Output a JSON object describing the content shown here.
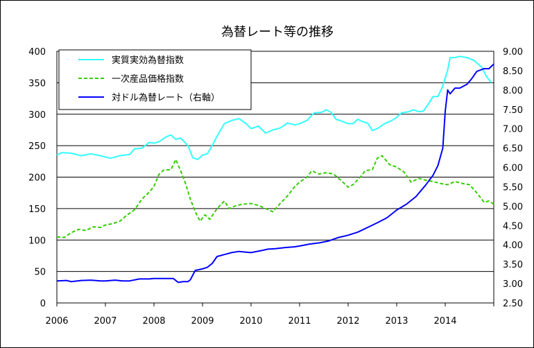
{
  "chart_data": {
    "type": "line",
    "title": "為替レート等の推移",
    "x_ticks": [
      "2006",
      "2007",
      "2008",
      "2009",
      "2010",
      "2011",
      "2012",
      "2013",
      "2014"
    ],
    "y_left": {
      "range": [
        0,
        400
      ],
      "ticks": [
        "0",
        "50",
        "100",
        "150",
        "200",
        "250",
        "300",
        "350",
        "400"
      ]
    },
    "y_right": {
      "range": [
        2.5,
        9.0
      ],
      "ticks": [
        "2.50",
        "3.00",
        "3.50",
        "4.00",
        "4.50",
        "5.00",
        "5.50",
        "6.00",
        "6.50",
        "7.00",
        "7.50",
        "8.00",
        "8.50",
        "9.00"
      ]
    },
    "x_range": [
      2006.0,
      2015.0
    ],
    "grid": "horizontal",
    "legend_position": "top-left",
    "colors": {
      "reer": "#33ffff",
      "cpi": "#33cc00",
      "usd": "#0000ff"
    },
    "series": [
      {
        "name": "実質実効為替指数",
        "axis": "left",
        "style": "solid",
        "points": [
          [
            2006.0,
            235
          ],
          [
            2006.1,
            239
          ],
          [
            2006.3,
            238
          ],
          [
            2006.5,
            234
          ],
          [
            2006.7,
            237
          ],
          [
            2006.9,
            234
          ],
          [
            2007.0,
            232
          ],
          [
            2007.1,
            230
          ],
          [
            2007.3,
            234
          ],
          [
            2007.5,
            236
          ],
          [
            2007.6,
            245
          ],
          [
            2007.75,
            246
          ],
          [
            2007.9,
            255
          ],
          [
            2008.0,
            254
          ],
          [
            2008.1,
            256
          ],
          [
            2008.25,
            264
          ],
          [
            2008.35,
            267
          ],
          [
            2008.45,
            260
          ],
          [
            2008.55,
            262
          ],
          [
            2008.7,
            250
          ],
          [
            2008.8,
            231
          ],
          [
            2008.9,
            228
          ],
          [
            2009.0,
            235
          ],
          [
            2009.1,
            237
          ],
          [
            2009.2,
            250
          ],
          [
            2009.3,
            265
          ],
          [
            2009.45,
            285
          ],
          [
            2009.6,
            290
          ],
          [
            2009.75,
            293
          ],
          [
            2009.9,
            285
          ],
          [
            2010.0,
            277
          ],
          [
            2010.15,
            281
          ],
          [
            2010.3,
            270
          ],
          [
            2010.45,
            275
          ],
          [
            2010.6,
            278
          ],
          [
            2010.75,
            286
          ],
          [
            2010.9,
            283
          ],
          [
            2011.0,
            285
          ],
          [
            2011.15,
            290
          ],
          [
            2011.3,
            302
          ],
          [
            2011.45,
            303
          ],
          [
            2011.55,
            307
          ],
          [
            2011.65,
            303
          ],
          [
            2011.75,
            292
          ],
          [
            2011.9,
            288
          ],
          [
            2012.0,
            285
          ],
          [
            2012.1,
            285
          ],
          [
            2012.2,
            292
          ],
          [
            2012.3,
            288
          ],
          [
            2012.4,
            286
          ],
          [
            2012.5,
            274
          ],
          [
            2012.6,
            277
          ],
          [
            2012.75,
            285
          ],
          [
            2012.9,
            290
          ],
          [
            2013.0,
            295
          ],
          [
            2013.1,
            302
          ],
          [
            2013.25,
            304
          ],
          [
            2013.35,
            307
          ],
          [
            2013.45,
            304
          ],
          [
            2013.55,
            305
          ],
          [
            2013.65,
            316
          ],
          [
            2013.75,
            328
          ],
          [
            2013.85,
            328
          ],
          [
            2013.95,
            345
          ],
          [
            2014.05,
            370
          ],
          [
            2014.1,
            390
          ],
          [
            2014.2,
            390
          ],
          [
            2014.3,
            392
          ],
          [
            2014.45,
            390
          ],
          [
            2014.6,
            385
          ],
          [
            2014.75,
            375
          ],
          [
            2014.85,
            360
          ],
          [
            2014.95,
            350
          ]
        ]
      },
      {
        "name": "一次産品価格指数",
        "axis": "left",
        "style": "dashed",
        "points": [
          [
            2006.0,
            105
          ],
          [
            2006.15,
            104
          ],
          [
            2006.3,
            112
          ],
          [
            2006.45,
            117
          ],
          [
            2006.6,
            115
          ],
          [
            2006.75,
            121
          ],
          [
            2006.9,
            120
          ],
          [
            2007.0,
            124
          ],
          [
            2007.15,
            126
          ],
          [
            2007.3,
            130
          ],
          [
            2007.45,
            140
          ],
          [
            2007.6,
            148
          ],
          [
            2007.75,
            165
          ],
          [
            2007.9,
            176
          ],
          [
            2008.0,
            185
          ],
          [
            2008.1,
            204
          ],
          [
            2008.2,
            211
          ],
          [
            2008.35,
            212
          ],
          [
            2008.45,
            228
          ],
          [
            2008.55,
            210
          ],
          [
            2008.65,
            190
          ],
          [
            2008.75,
            165
          ],
          [
            2008.85,
            145
          ],
          [
            2008.95,
            130
          ],
          [
            2009.05,
            140
          ],
          [
            2009.15,
            133
          ],
          [
            2009.3,
            150
          ],
          [
            2009.45,
            162
          ],
          [
            2009.55,
            150
          ],
          [
            2009.7,
            155
          ],
          [
            2009.85,
            157
          ],
          [
            2010.0,
            158
          ],
          [
            2010.15,
            155
          ],
          [
            2010.3,
            150
          ],
          [
            2010.45,
            145
          ],
          [
            2010.6,
            158
          ],
          [
            2010.75,
            170
          ],
          [
            2010.9,
            185
          ],
          [
            2011.0,
            192
          ],
          [
            2011.15,
            200
          ],
          [
            2011.25,
            210
          ],
          [
            2011.4,
            205
          ],
          [
            2011.55,
            207
          ],
          [
            2011.7,
            205
          ],
          [
            2011.85,
            195
          ],
          [
            2012.0,
            184
          ],
          [
            2012.1,
            188
          ],
          [
            2012.25,
            200
          ],
          [
            2012.35,
            210
          ],
          [
            2012.5,
            212
          ],
          [
            2012.6,
            230
          ],
          [
            2012.7,
            234
          ],
          [
            2012.85,
            220
          ],
          [
            2013.0,
            216
          ],
          [
            2013.15,
            208
          ],
          [
            2013.3,
            192
          ],
          [
            2013.45,
            198
          ],
          [
            2013.6,
            195
          ],
          [
            2013.75,
            193
          ],
          [
            2013.9,
            190
          ],
          [
            2014.05,
            188
          ],
          [
            2014.2,
            193
          ],
          [
            2014.35,
            190
          ],
          [
            2014.5,
            188
          ],
          [
            2014.65,
            175
          ],
          [
            2014.8,
            160
          ],
          [
            2014.9,
            162
          ],
          [
            2015.0,
            157
          ]
        ]
      },
      {
        "name": "対ドル為替レート（右軸）",
        "axis": "right",
        "style": "solid",
        "points": [
          [
            2006.0,
            3.07
          ],
          [
            2006.2,
            3.08
          ],
          [
            2006.3,
            3.05
          ],
          [
            2006.5,
            3.08
          ],
          [
            2006.7,
            3.09
          ],
          [
            2006.9,
            3.07
          ],
          [
            2007.0,
            3.07
          ],
          [
            2007.2,
            3.09
          ],
          [
            2007.35,
            3.07
          ],
          [
            2007.5,
            3.07
          ],
          [
            2007.7,
            3.12
          ],
          [
            2007.9,
            3.12
          ],
          [
            2008.0,
            3.13
          ],
          [
            2008.2,
            3.13
          ],
          [
            2008.4,
            3.13
          ],
          [
            2008.5,
            3.03
          ],
          [
            2008.6,
            3.05
          ],
          [
            2008.7,
            3.05
          ],
          [
            2008.75,
            3.1
          ],
          [
            2008.85,
            3.34
          ],
          [
            2009.0,
            3.38
          ],
          [
            2009.1,
            3.42
          ],
          [
            2009.2,
            3.52
          ],
          [
            2009.3,
            3.7
          ],
          [
            2009.45,
            3.75
          ],
          [
            2009.6,
            3.8
          ],
          [
            2009.75,
            3.83
          ],
          [
            2009.9,
            3.81
          ],
          [
            2010.0,
            3.8
          ],
          [
            2010.2,
            3.85
          ],
          [
            2010.35,
            3.89
          ],
          [
            2010.5,
            3.9
          ],
          [
            2010.7,
            3.93
          ],
          [
            2010.9,
            3.95
          ],
          [
            2011.0,
            3.97
          ],
          [
            2011.2,
            4.02
          ],
          [
            2011.4,
            4.05
          ],
          [
            2011.6,
            4.1
          ],
          [
            2011.8,
            4.19
          ],
          [
            2012.0,
            4.25
          ],
          [
            2012.2,
            4.33
          ],
          [
            2012.4,
            4.45
          ],
          [
            2012.6,
            4.57
          ],
          [
            2012.8,
            4.7
          ],
          [
            2013.0,
            4.9
          ],
          [
            2013.2,
            5.05
          ],
          [
            2013.4,
            5.25
          ],
          [
            2013.6,
            5.55
          ],
          [
            2013.75,
            5.8
          ],
          [
            2013.85,
            6.05
          ],
          [
            2013.95,
            6.5
          ],
          [
            2014.0,
            7.45
          ],
          [
            2014.05,
            8.0
          ],
          [
            2014.1,
            7.9
          ],
          [
            2014.2,
            8.05
          ],
          [
            2014.3,
            8.05
          ],
          [
            2014.45,
            8.15
          ],
          [
            2014.55,
            8.3
          ],
          [
            2014.65,
            8.48
          ],
          [
            2014.8,
            8.55
          ],
          [
            2014.9,
            8.55
          ],
          [
            2015.0,
            8.67
          ]
        ]
      }
    ]
  }
}
